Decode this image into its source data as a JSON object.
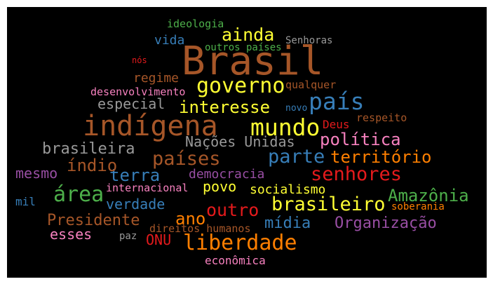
{
  "words": [
    {
      "text": "Brasil",
      "color": "#a65628"
    },
    {
      "text": "indígena",
      "color": "#a65628"
    },
    {
      "text": "país",
      "color": "#377eb8"
    },
    {
      "text": "mundo",
      "color": "#ffff33"
    },
    {
      "text": "governo",
      "color": "#ffff33"
    },
    {
      "text": "liberdade",
      "color": "#ff7f00"
    },
    {
      "text": "brasileiro",
      "color": "#ffff33"
    },
    {
      "text": "área",
      "color": "#4daf4a"
    },
    {
      "text": "parte",
      "color": "#377eb8"
    },
    {
      "text": "senhores",
      "color": "#e41a1c"
    },
    {
      "text": "ainda",
      "color": "#ffff33"
    },
    {
      "text": "países",
      "color": "#a65628"
    },
    {
      "text": "política",
      "color": "#f781bf"
    },
    {
      "text": "interesse",
      "color": "#ffff33"
    },
    {
      "text": "brasileira",
      "color": "#999999"
    },
    {
      "text": "território",
      "color": "#ff7f00"
    },
    {
      "text": "Nações Unidas",
      "color": "#999999"
    },
    {
      "text": "Amazônia",
      "color": "#4daf4a"
    },
    {
      "text": "outro",
      "color": "#e41a1c"
    },
    {
      "text": "Organização",
      "color": "#984ea3"
    },
    {
      "text": "terra",
      "color": "#377eb8"
    },
    {
      "text": "índio",
      "color": "#a65628"
    },
    {
      "text": "ano",
      "color": "#ff7f00"
    },
    {
      "text": "Presidente",
      "color": "#a65628"
    },
    {
      "text": "mídia",
      "color": "#377eb8"
    },
    {
      "text": "especial",
      "color": "#999999"
    },
    {
      "text": "verdade",
      "color": "#377eb8"
    },
    {
      "text": "mesmo",
      "color": "#984ea3"
    },
    {
      "text": "esses",
      "color": "#f781bf"
    },
    {
      "text": "povo",
      "color": "#ffff33"
    },
    {
      "text": "regime",
      "color": "#a65628"
    },
    {
      "text": "vida",
      "color": "#377eb8"
    },
    {
      "text": "ONU",
      "color": "#e41a1c"
    },
    {
      "text": "socialismo",
      "color": "#ffff33"
    },
    {
      "text": "democracia",
      "color": "#984ea3"
    },
    {
      "text": "econômica",
      "color": "#f781bf"
    },
    {
      "text": "Deus",
      "color": "#e41a1c"
    },
    {
      "text": "desenvolvimento",
      "color": "#f781bf"
    },
    {
      "text": "qualquer",
      "color": "#a65628"
    },
    {
      "text": "ideologia",
      "color": "#4daf4a"
    },
    {
      "text": "respeito",
      "color": "#a65628"
    },
    {
      "text": "mil",
      "color": "#377eb8"
    },
    {
      "text": "internacional",
      "color": "#f781bf"
    },
    {
      "text": "direitos humanos",
      "color": "#a65628"
    },
    {
      "text": "soberania",
      "color": "#ff7f00"
    },
    {
      "text": "outros países",
      "color": "#4daf4a"
    },
    {
      "text": "Senhoras",
      "color": "#999999"
    },
    {
      "text": "paz",
      "color": "#999999"
    },
    {
      "text": "novo",
      "color": "#377eb8"
    },
    {
      "text": "nós",
      "color": "#e41a1c"
    }
  ]
}
